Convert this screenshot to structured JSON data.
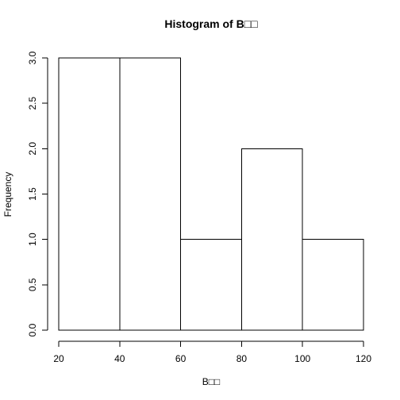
{
  "chart_data": {
    "type": "bar",
    "title": "Histogram of B□□",
    "xlabel": "B□□",
    "ylabel": "Frequency",
    "bins": [
      {
        "start": 20,
        "end": 40,
        "count": 3
      },
      {
        "start": 40,
        "end": 60,
        "count": 3
      },
      {
        "start": 60,
        "end": 80,
        "count": 1
      },
      {
        "start": 80,
        "end": 100,
        "count": 2
      },
      {
        "start": 100,
        "end": 120,
        "count": 1
      }
    ],
    "xlim": [
      20,
      120
    ],
    "ylim": [
      0,
      3
    ],
    "x_ticks": [
      "20",
      "40",
      "60",
      "80",
      "100",
      "120"
    ],
    "y_ticks": [
      "0.0",
      "0.5",
      "1.0",
      "1.5",
      "2.0",
      "2.5",
      "3.0"
    ],
    "grid": false,
    "colors": {
      "bar_fill": "#ffffff",
      "bar_stroke": "#000000",
      "axis": "#000000",
      "background": "#ffffff"
    }
  }
}
